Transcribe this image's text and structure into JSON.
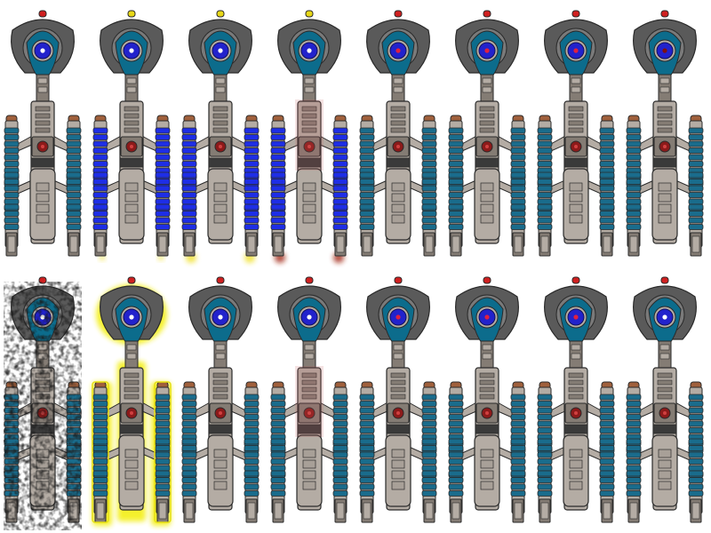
{
  "sheet": {
    "rows": [
      {
        "name": "row-top",
        "frames": [
          {
            "variant": "base",
            "nacelle": "teal",
            "core": "white",
            "tip": "red"
          },
          {
            "variant": "engines-blue",
            "nacelle": "blue",
            "core": "white",
            "tip": "yellow",
            "thrust": "yellow-small"
          },
          {
            "variant": "engines-blue",
            "nacelle": "blue",
            "core": "white",
            "tip": "yellow",
            "thrust": "yellow"
          },
          {
            "variant": "engines-blue-fade",
            "nacelle": "blue",
            "core": "white",
            "tip": "yellow",
            "thrust": "red-glow",
            "tint": "red"
          },
          {
            "variant": "base",
            "nacelle": "teal",
            "core": "red",
            "tip": "red"
          },
          {
            "variant": "base",
            "nacelle": "teal",
            "core": "red",
            "tip": "red"
          },
          {
            "variant": "base",
            "nacelle": "teal",
            "core": "red",
            "tip": "red"
          },
          {
            "variant": "base",
            "nacelle": "teal",
            "core": "darkred",
            "tip": "red"
          }
        ]
      },
      {
        "name": "row-bottom",
        "frames": [
          {
            "variant": "damaged",
            "nacelle": "teal",
            "core": "white",
            "tip": "red",
            "damage": true
          },
          {
            "variant": "selected",
            "nacelle": "teal",
            "core": "white",
            "tip": "red",
            "outline": "yellow"
          },
          {
            "variant": "base",
            "nacelle": "teal",
            "core": "white",
            "tip": "red"
          },
          {
            "variant": "tinted",
            "nacelle": "teal",
            "core": "white",
            "tip": "red",
            "tint": "red"
          },
          {
            "variant": "base",
            "nacelle": "teal",
            "core": "red",
            "tip": "red"
          },
          {
            "variant": "base",
            "nacelle": "teal",
            "core": "red",
            "tip": "red"
          },
          {
            "variant": "base",
            "nacelle": "teal",
            "core": "red",
            "tip": "red"
          },
          {
            "variant": "base",
            "nacelle": "teal",
            "core": "white",
            "tip": "red"
          }
        ]
      }
    ]
  },
  "colors": {
    "hull": "#b4aca4",
    "hull_dark": "#847c74",
    "outline": "#2a2a2a",
    "dish": "#5a5a5a",
    "dish_light": "#7a7a7a",
    "ring": "#0c6c8c",
    "ring_inner": "#2222cc",
    "teal_block": "#1a6c8c",
    "blue_block": "#1e2ee6",
    "bridge_red": "#8c1a1a",
    "tip_red": "#d02020",
    "tip_yellow": "#e8d818",
    "tip_brown": "#a0603c",
    "select_glow": "#f4f020"
  }
}
